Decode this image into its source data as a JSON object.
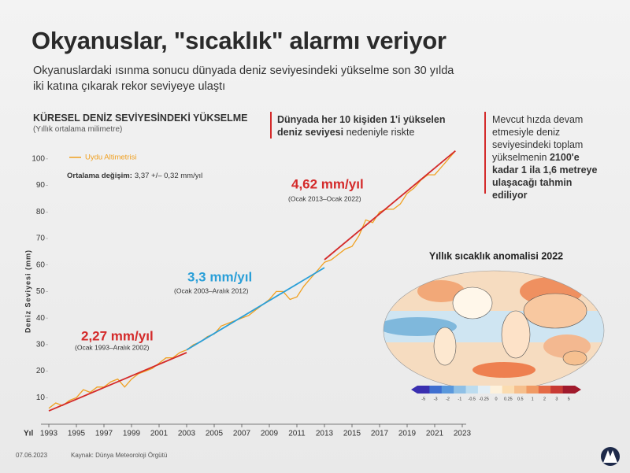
{
  "header": {
    "title": "Okyanuslar, \"sıcaklık\" alarmı veriyor",
    "subtitle": "Okyanuslardaki ısınma sonucu dünyada deniz seviyesindeki yükselme son 30 yılda iki katına çıkarak rekor seviyeye ulaştı"
  },
  "chart_data": {
    "type": "line",
    "title": "KÜRESEL DENİZ SEVİYESİNDEKİ YÜKSELME",
    "subtitle": "(Yıllık ortalama milimetre)",
    "x_label": "Yıl",
    "y_label": "Deniz Seviyesi (mm)",
    "note_bold": "Ortalama değişim:",
    "note": "3,37 +/– 0,32 mm/yıl",
    "xlim": [
      1993,
      2023
    ],
    "xticks": [
      1993,
      1995,
      1997,
      1999,
      2001,
      2003,
      2005,
      2007,
      2009,
      2011,
      2013,
      2015,
      2017,
      2019,
      2021,
      2023
    ],
    "ylim": [
      0,
      105
    ],
    "yticks": [
      10,
      20,
      30,
      40,
      50,
      60,
      70,
      80,
      90,
      100
    ],
    "grid": false,
    "series": [
      {
        "name": "Uydu Altimetrisi",
        "color": "#f0a020",
        "x": [
          1993,
          1993.5,
          1994,
          1994.5,
          1995,
          1995.5,
          1996,
          1996.5,
          1997,
          1997.5,
          1998,
          1998.5,
          1999,
          1999.5,
          2000,
          2000.5,
          2001,
          2001.5,
          2002,
          2002.5,
          2003,
          2003.5,
          2004,
          2004.5,
          2005,
          2005.5,
          2006,
          2006.5,
          2007,
          2007.5,
          2008,
          2008.5,
          2009,
          2009.5,
          2010,
          2010.5,
          2011,
          2011.5,
          2012,
          2012.5,
          2013,
          2013.5,
          2014,
          2014.5,
          2015,
          2015.5,
          2016,
          2016.5,
          2017,
          2017.5,
          2018,
          2018.5,
          2019,
          2019.5,
          2020,
          2020.5,
          2021,
          2021.5,
          2022,
          2022.5
        ],
        "values": [
          6,
          8,
          7,
          9,
          10,
          13,
          12,
          14,
          14,
          16,
          17,
          14,
          17,
          19,
          20,
          21,
          23,
          25,
          25,
          27,
          28,
          30,
          31,
          33,
          34,
          37,
          38,
          39,
          40,
          41,
          43,
          45,
          47,
          50,
          50,
          47,
          48,
          52,
          55,
          58,
          61,
          62,
          64,
          66,
          67,
          71,
          77,
          76,
          80,
          81,
          81,
          83,
          87,
          89,
          92,
          94,
          94,
          97,
          100,
          103
        ]
      }
    ],
    "trends": [
      {
        "x": [
          1993,
          2003
        ],
        "values": [
          5,
          27
        ],
        "color": "#d42a2a",
        "label": "2,27 mm/yıl",
        "period": "(Ocak 1993–Aralık 2002)"
      },
      {
        "x": [
          2003,
          2013
        ],
        "values": [
          28,
          59
        ],
        "color": "#2a9fd8",
        "label": "3,3 mm/yıl",
        "period": "(Ocak 2003–Aralık 2012)"
      },
      {
        "x": [
          2013,
          2022.5
        ],
        "values": [
          62,
          103
        ],
        "color": "#d42a2a",
        "label": "4,62 mm/yıl",
        "period": "(Ocak 2013–Ocak 2022)"
      }
    ]
  },
  "middle_note": {
    "bold": "Dünyada her 10 kişiden 1'i yükselen deniz seviyesi",
    "normal": "nedeniyle riskte"
  },
  "right_note": {
    "normal": "Mevcut hızda devam etmesiyle deniz seviyesindeki toplam yükselmenin",
    "bold": "2100'e kadar 1 ila 1,6 metreye ulaşacağı tahmin ediliyor"
  },
  "map": {
    "title": "Yıllık sıcaklık anomalisi 2022",
    "colorbar": [
      -5,
      -3,
      -2,
      -1,
      -0.5,
      -0.25,
      0,
      0.25,
      0.5,
      1,
      2,
      3,
      5
    ]
  },
  "footer": {
    "date": "07.06.2023",
    "source": "Kaynak: Dünya Meteoroloji Örgütü"
  }
}
